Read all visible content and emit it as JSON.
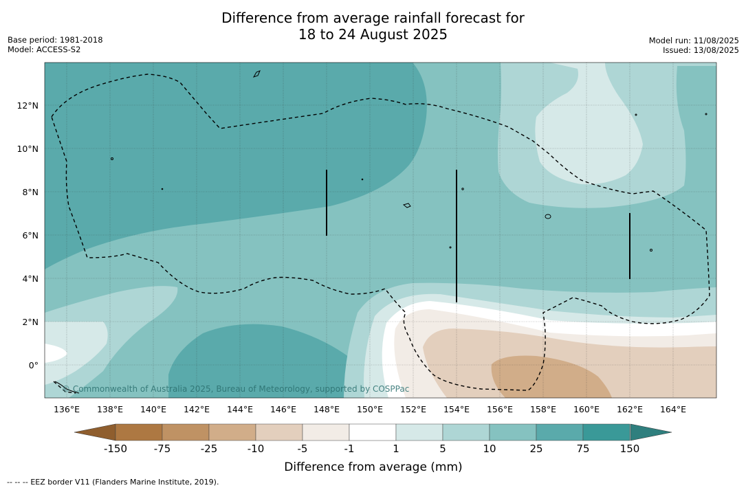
{
  "title": {
    "line1": "Difference from average rainfall forecast for",
    "line2": "18 to 24 August 2025"
  },
  "meta": {
    "base_period": "Base period: 1981-2018",
    "model": "Model: ACCESS-S2",
    "model_run": "Model run: 11/08/2025",
    "issued": "Issued: 13/08/2025"
  },
  "map": {
    "lon_ticks": [
      "136°E",
      "138°E",
      "140°E",
      "142°E",
      "144°E",
      "146°E",
      "148°E",
      "150°E",
      "152°E",
      "154°E",
      "156°E",
      "158°E",
      "160°E",
      "162°E",
      "164°E"
    ],
    "lat_ticks": [
      "0°",
      "2°N",
      "4°N",
      "6°N",
      "8°N",
      "10°N",
      "12°N"
    ],
    "lon_range": [
      134.9,
      166.0
    ],
    "lat_range": [
      -1.5,
      14.0
    ],
    "watermark": "© Commonwealth of Australia 2025, Bureau of Meteorology, supported by COSPPac",
    "eez_style": "dashed"
  },
  "colorbar": {
    "boundaries": [
      "-150",
      "-75",
      "-25",
      "-10",
      "-5",
      "-1",
      "1",
      "5",
      "10",
      "25",
      "75",
      "150"
    ],
    "colors": [
      "#ad7842",
      "#bf9264",
      "#d1ad89",
      "#e3cfbd",
      "#f2ece6",
      "#ffffff",
      "#d6e9e8",
      "#aed6d5",
      "#85c2c0",
      "#5aaaab",
      "#3a9998"
    ],
    "extend_low_color": "#8f5e2e",
    "extend_high_color": "#2f7f7e",
    "label": "Difference from average (mm)"
  },
  "footer": {
    "eez_symbol": "-- -- --",
    "note": "EEZ border V11 (Flanders Marine Institute, 2019)."
  }
}
